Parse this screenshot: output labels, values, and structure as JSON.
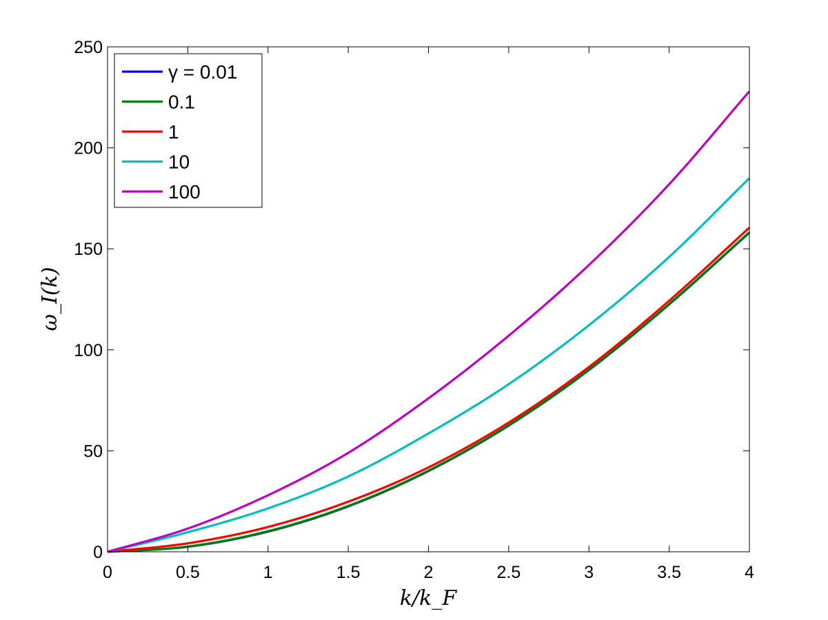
{
  "chart_data": {
    "type": "line",
    "title": "",
    "xlabel": "k/k_F",
    "ylabel": "ω_I(k)",
    "xlim": [
      0,
      4
    ],
    "ylim": [
      0,
      250
    ],
    "x_ticks": [
      "0",
      "0.5",
      "1",
      "1.5",
      "2",
      "2.5",
      "3",
      "3.5",
      "4"
    ],
    "y_ticks": [
      "0",
      "50",
      "100",
      "150",
      "200",
      "250"
    ],
    "grid": false,
    "legend_position": "top-left",
    "x": [
      0,
      0.5,
      1,
      1.5,
      2,
      2.5,
      3,
      3.5,
      4
    ],
    "series": [
      {
        "name": "γ = 0.01",
        "color": "#0000ff",
        "values": [
          0,
          2.5,
          10,
          22.5,
          40,
          62.5,
          90,
          122.5,
          158
        ]
      },
      {
        "name": "0.1",
        "color": "#008000",
        "values": [
          0,
          2.6,
          10.2,
          22.7,
          40.2,
          62.7,
          90.2,
          122.7,
          158.2
        ]
      },
      {
        "name": "1",
        "color": "#ff0000",
        "values": [
          0,
          4.2,
          12.3,
          24.8,
          41.8,
          64,
          91.5,
          124.3,
          160.5
        ]
      },
      {
        "name": "10",
        "color": "#00bfbf",
        "values": [
          0,
          9.7,
          21.5,
          37.3,
          58.6,
          83,
          112.2,
          146,
          185
        ]
      },
      {
        "name": "100",
        "color": "#bf00bf",
        "values": [
          0,
          11.5,
          28,
          49,
          76,
          107,
          142,
          182,
          228
        ]
      }
    ]
  }
}
